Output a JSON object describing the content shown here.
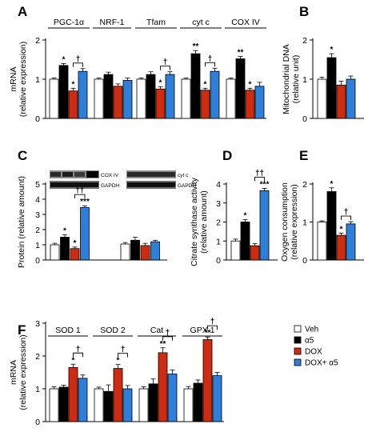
{
  "palette": {
    "veh": "#ffffff",
    "a5": "#000000",
    "dox": "#cc2d12",
    "doxa5": "#2f7fd9",
    "stroke": "#000000",
    "error": "#333333"
  },
  "legend": {
    "items": [
      {
        "key": "veh",
        "label": "Veh"
      },
      {
        "key": "a5",
        "label": "α5"
      },
      {
        "key": "dox",
        "label": "DOX"
      },
      {
        "key": "doxa5",
        "label": "DOX+ α5"
      }
    ]
  },
  "blot": {
    "left": {
      "rows": [
        "COX IV",
        "GAPDH"
      ]
    },
    "right": {
      "rows": [
        "cyt c",
        "GAPDH"
      ]
    }
  },
  "chart_data": [
    {
      "panel": "A",
      "type": "bar",
      "ylabel": [
        "mRNA",
        "(relative expression)"
      ],
      "ylim": [
        0,
        2
      ],
      "yticks": [
        0,
        1,
        2
      ],
      "groups": [
        {
          "name": "PGC-1α",
          "values": [
            1.0,
            1.35,
            0.7,
            1.2
          ],
          "errors": [
            0.03,
            0.05,
            0.07,
            0.07
          ],
          "sig": [
            "",
            "*",
            "*",
            ""
          ],
          "bracket": {
            "mark": "†"
          }
        },
        {
          "name": "NRF-1",
          "values": [
            1.0,
            1.12,
            0.82,
            0.97
          ],
          "errors": [
            0.03,
            0.06,
            0.06,
            0.06
          ],
          "sig": [
            "",
            "",
            "",
            ""
          ]
        },
        {
          "name": "Tfam",
          "values": [
            1.0,
            1.12,
            0.75,
            1.12
          ],
          "errors": [
            0.03,
            0.07,
            0.06,
            0.07
          ],
          "sig": [
            "",
            "",
            "*",
            ""
          ],
          "bracket": {
            "mark": "†"
          }
        },
        {
          "name": "cyt c",
          "values": [
            1.0,
            1.65,
            0.72,
            1.2
          ],
          "errors": [
            0.03,
            0.08,
            0.05,
            0.08
          ],
          "sig": [
            "",
            "**",
            "*",
            ""
          ],
          "bracket": {
            "mark": "†"
          }
        },
        {
          "name": "COX IV",
          "values": [
            1.0,
            1.52,
            0.72,
            0.82
          ],
          "errors": [
            0.03,
            0.06,
            0.05,
            0.1
          ],
          "sig": [
            "",
            "**",
            "*",
            ""
          ]
        }
      ]
    },
    {
      "panel": "B",
      "type": "bar",
      "ylabel": [
        "Mitochondrial DNA",
        "(relative unit)"
      ],
      "ylim": [
        0,
        2
      ],
      "yticks": [
        0,
        1,
        2
      ],
      "groups": [
        {
          "name": "",
          "values": [
            1.0,
            1.55,
            0.85,
            1.0
          ],
          "errors": [
            0.05,
            0.1,
            0.1,
            0.08
          ],
          "sig": [
            "",
            "*",
            "",
            ""
          ]
        }
      ]
    },
    {
      "panel": "C",
      "type": "bar",
      "ylabel": [
        "Protein (relative amount)"
      ],
      "ylim": [
        0,
        5
      ],
      "yticks": [
        0,
        1,
        2,
        3,
        4,
        5
      ],
      "groups": [
        {
          "name": "COX IV",
          "values": [
            1.0,
            1.5,
            0.75,
            3.45
          ],
          "errors": [
            0.1,
            0.15,
            0.1,
            0.12
          ],
          "sig": [
            "",
            "*",
            "*",
            "***"
          ],
          "bracket": {
            "mark": "††"
          }
        },
        {
          "name": "cyt c",
          "values": [
            1.05,
            1.3,
            0.95,
            1.2
          ],
          "errors": [
            0.1,
            0.2,
            0.15,
            0.1
          ],
          "sig": [
            "",
            "",
            "",
            ""
          ]
        }
      ]
    },
    {
      "panel": "D",
      "type": "bar",
      "ylabel": [
        "Citrate synthase activity",
        "(relative amount)"
      ],
      "ylim": [
        0,
        4
      ],
      "yticks": [
        0,
        1,
        2,
        3,
        4
      ],
      "groups": [
        {
          "name": "",
          "values": [
            1.0,
            2.0,
            0.75,
            3.65
          ],
          "errors": [
            0.1,
            0.12,
            0.12,
            0.12
          ],
          "sig": [
            "",
            "*",
            "",
            "***"
          ],
          "bracket": {
            "mark": "††"
          }
        }
      ]
    },
    {
      "panel": "E",
      "type": "bar",
      "ylabel": [
        "Oxygen consumption",
        "(relative expression)"
      ],
      "ylim": [
        0,
        2
      ],
      "yticks": [
        0,
        1,
        2
      ],
      "groups": [
        {
          "name": "",
          "values": [
            1.0,
            1.8,
            0.65,
            0.95
          ],
          "errors": [
            0.03,
            0.1,
            0.06,
            0.06
          ],
          "sig": [
            "",
            "*",
            "*",
            ""
          ],
          "bracket": {
            "mark": "†"
          }
        }
      ]
    },
    {
      "panel": "F",
      "type": "bar",
      "ylabel": [
        "mRNA",
        "(relative expression)"
      ],
      "ylim": [
        0,
        3
      ],
      "yticks": [
        0,
        1,
        2,
        3
      ],
      "groups": [
        {
          "name": "SOD 1",
          "values": [
            1.0,
            1.05,
            1.65,
            1.32
          ],
          "errors": [
            0.06,
            0.06,
            0.1,
            0.1
          ],
          "sig": [
            "",
            "",
            "*",
            ""
          ],
          "bracket": {
            "mark": "†"
          }
        },
        {
          "name": "SOD 2",
          "values": [
            1.0,
            0.92,
            1.62,
            1.0
          ],
          "errors": [
            0.05,
            0.2,
            0.12,
            0.1
          ],
          "sig": [
            "",
            "",
            "*",
            ""
          ],
          "bracket": {
            "mark": "†"
          }
        },
        {
          "name": "Cat",
          "values": [
            1.0,
            1.15,
            2.1,
            1.45
          ],
          "errors": [
            0.06,
            0.15,
            0.15,
            0.12
          ],
          "sig": [
            "",
            "",
            "**",
            ""
          ],
          "bracket": {
            "mark": "†"
          }
        },
        {
          "name": "GPX 1",
          "values": [
            1.0,
            1.17,
            2.5,
            1.4
          ],
          "errors": [
            0.07,
            0.1,
            0.08,
            0.1
          ],
          "sig": [
            "",
            "",
            "**",
            ""
          ],
          "bracket": {
            "mark": "†"
          }
        }
      ]
    }
  ]
}
